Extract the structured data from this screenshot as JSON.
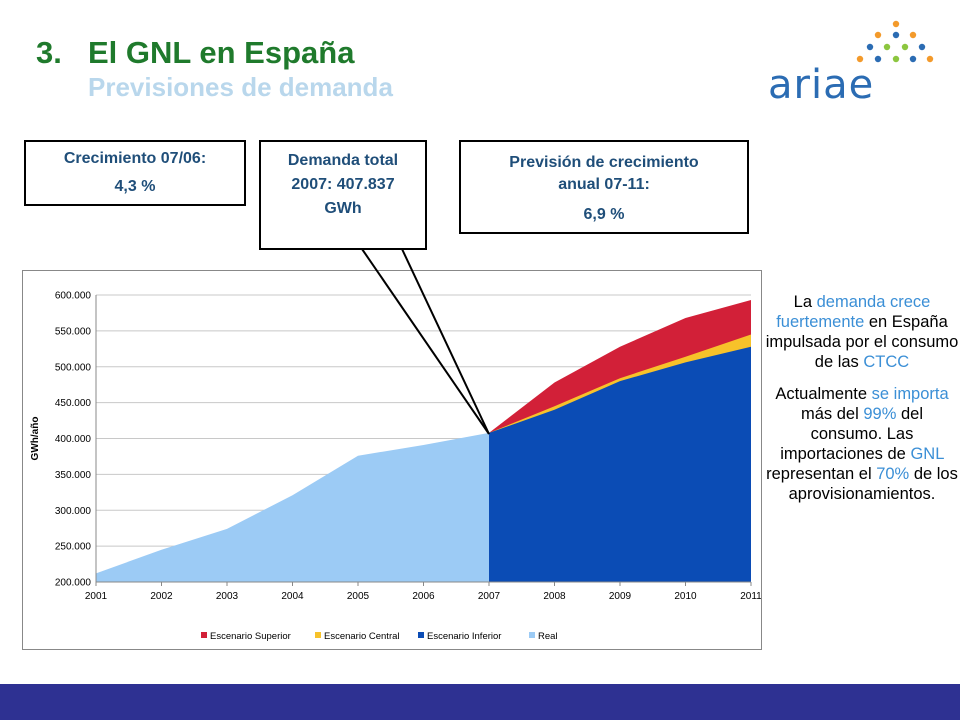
{
  "header": {
    "number": "3.",
    "title": "El GNL en España",
    "subtitle": "Previsiones de demanda",
    "logo_text": "ariae"
  },
  "callouts": {
    "growth_label": "Crecimiento  07/06:",
    "growth_value": "4,3 %",
    "demand_line1": "Demanda total",
    "demand_line2": "2007: 407.837",
    "demand_line3": "GWh",
    "forecast_line1": "Previsión de crecimiento",
    "forecast_line2": "anual 07-11:",
    "forecast_value": "6,9 %"
  },
  "side": {
    "p1": [
      {
        "t": "La ",
        "hl": false
      },
      {
        "t": "demanda crece fuertemente",
        "hl": true
      },
      {
        "t": " en España impulsada por el consumo de las ",
        "hl": false
      },
      {
        "t": "CTCC",
        "hl": true
      }
    ],
    "p2": [
      {
        "t": "Actualmente ",
        "hl": false
      },
      {
        "t": "se importa",
        "hl": true
      },
      {
        "t": " más del ",
        "hl": false
      },
      {
        "t": "99%",
        "hl": true
      },
      {
        "t": " del consumo. Las importaciones de ",
        "hl": false
      },
      {
        "t": "GNL",
        "hl": true
      },
      {
        "t": " representan el ",
        "hl": false
      },
      {
        "t": "70%",
        "hl": true
      },
      {
        "t": " de los aprovisionamientos.",
        "hl": false
      }
    ]
  },
  "colors": {
    "superior": "#d22038",
    "central": "#f7c22a",
    "inferior": "#0b4cb5",
    "real": "#9ccbf5",
    "title_green": "#1f7a2c",
    "footer": "#2e3192"
  },
  "chart_data": {
    "type": "area",
    "ylabel": "GWh/año",
    "ylim": [
      200000,
      600000
    ],
    "yticks": [
      "200.000",
      "250.000",
      "300.000",
      "350.000",
      "400.000",
      "450.000",
      "500.000",
      "550.000",
      "600.000"
    ],
    "x": [
      "2001",
      "2002",
      "2003",
      "2004",
      "2005",
      "2006",
      "2007",
      "2008",
      "2009",
      "2010",
      "2011"
    ],
    "grid": true,
    "legend_position": "bottom",
    "series": [
      {
        "name": "Escenario Superior",
        "x": [
          "2007",
          "2008",
          "2009",
          "2010",
          "2011"
        ],
        "values": [
          407837,
          478000,
          528000,
          568000,
          593000
        ]
      },
      {
        "name": "Escenario Central",
        "x": [
          "2007",
          "2008",
          "2009",
          "2010",
          "2011"
        ],
        "values": [
          407837,
          445000,
          484000,
          514000,
          545000
        ]
      },
      {
        "name": "Escenario Inferior",
        "x": [
          "2007",
          "2008",
          "2009",
          "2010",
          "2011"
        ],
        "values": [
          407837,
          440000,
          480000,
          506000,
          528000
        ]
      },
      {
        "name": "Real",
        "x": [
          "2001",
          "2002",
          "2003",
          "2004",
          "2005",
          "2006",
          "2007"
        ],
        "values": [
          212000,
          245000,
          274000,
          321000,
          376000,
          391000,
          407837
        ]
      }
    ]
  }
}
